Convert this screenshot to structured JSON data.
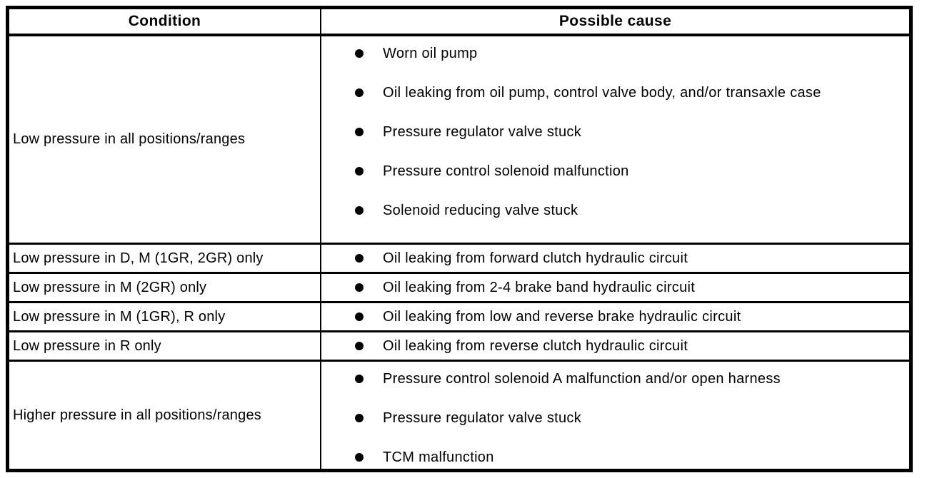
{
  "table": {
    "headers": [
      "Condition",
      "Possible cause"
    ],
    "rows": [
      {
        "condition": "Low pressure in all positions/ranges",
        "causes": [
          "Worn oil pump",
          "Oil leaking from oil pump, control valve body, and/or transaxle case",
          "Pressure regulator valve stuck",
          "Pressure control solenoid malfunction",
          "Solenoid reducing valve stuck"
        ]
      },
      {
        "condition": "Low pressure in D, M (1GR, 2GR) only",
        "causes": [
          "Oil leaking from forward clutch hydraulic circuit"
        ]
      },
      {
        "condition": "Low pressure in M (2GR) only",
        "causes": [
          "Oil leaking from 2-4 brake band hydraulic circuit"
        ]
      },
      {
        "condition": "Low pressure in M (1GR), R only",
        "causes": [
          "Oil leaking from low and reverse brake hydraulic circuit"
        ]
      },
      {
        "condition": "Low pressure in R only",
        "causes": [
          "Oil leaking from reverse clutch hydraulic circuit"
        ]
      },
      {
        "condition": "Higher pressure in all positions/ranges",
        "causes": [
          "Pressure control solenoid A malfunction and/or open harness",
          "Pressure regulator valve stuck",
          "TCM malfunction"
        ]
      }
    ],
    "colors": {
      "border": "#000000",
      "text": "#000000",
      "background": "#ffffff"
    }
  }
}
